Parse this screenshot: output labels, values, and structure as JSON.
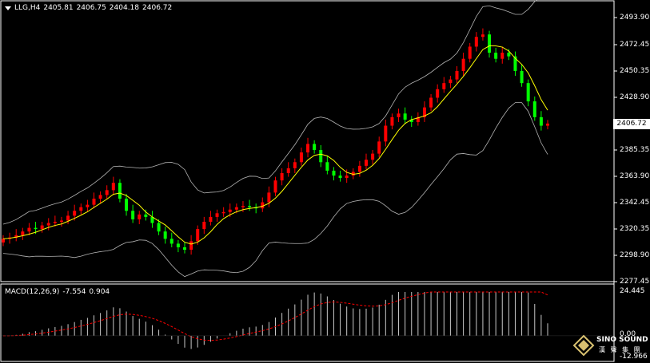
{
  "header": {
    "symbol": "LLG,H4",
    "open": "2405.81",
    "high": "2406.75",
    "low": "2404.18",
    "close": "2406.72"
  },
  "price_axis": {
    "ticks": [
      "2493.90",
      "2472.45",
      "2450.35",
      "2428.90",
      "2406.72",
      "2385.35",
      "2363.90",
      "2342.45",
      "2320.35",
      "2298.90",
      "2277.45"
    ],
    "current_price": "2406.72"
  },
  "macd": {
    "label": "MACD(12,26,9)",
    "main": "-7.554",
    "signal": "0.904",
    "axis_ticks": [
      "24.445",
      "0.00",
      "-12.966"
    ]
  },
  "colors": {
    "bull": "#ff0000",
    "bear": "#00ff00",
    "ma": "#ffff00",
    "bands": "#b4b4b4",
    "signal": "#ff0000",
    "histogram": "#c8c8c8",
    "background": "#000000"
  },
  "logo": {
    "name": "SINO SOUND",
    "sub": "漢 聲 集 團"
  },
  "chart_data": {
    "type": "candlestick",
    "series": [
      {
        "name": "LLG,H4",
        "values": [
          2312,
          2313,
          2315,
          2318,
          2321,
          2320,
          2323,
          2325,
          2326,
          2327,
          2331,
          2335,
          2338,
          2340,
          2345,
          2348,
          2352,
          2358,
          2345,
          2335,
          2328,
          2332,
          2330,
          2325,
          2318,
          2312,
          2308,
          2305,
          2303,
          2310,
          2320,
          2326,
          2330,
          2333,
          2334,
          2336,
          2338,
          2339,
          2338,
          2337,
          2342,
          2350,
          2360,
          2366,
          2370,
          2375,
          2383,
          2390,
          2385,
          2375,
          2368,
          2364,
          2362,
          2364,
          2367,
          2372,
          2377,
          2382,
          2392,
          2405,
          2412,
          2415,
          2410,
          2408,
          2412,
          2420,
          2428,
          2435,
          2440,
          2443,
          2450,
          2460,
          2470,
          2478,
          2480,
          2465,
          2460,
          2465,
          2462,
          2450,
          2440,
          2425,
          2412,
          2405,
          2406.72
        ]
      }
    ],
    "ylim": [
      2277.45,
      2493.9
    ],
    "macd_ylim": [
      -12.966,
      24.445
    ]
  }
}
